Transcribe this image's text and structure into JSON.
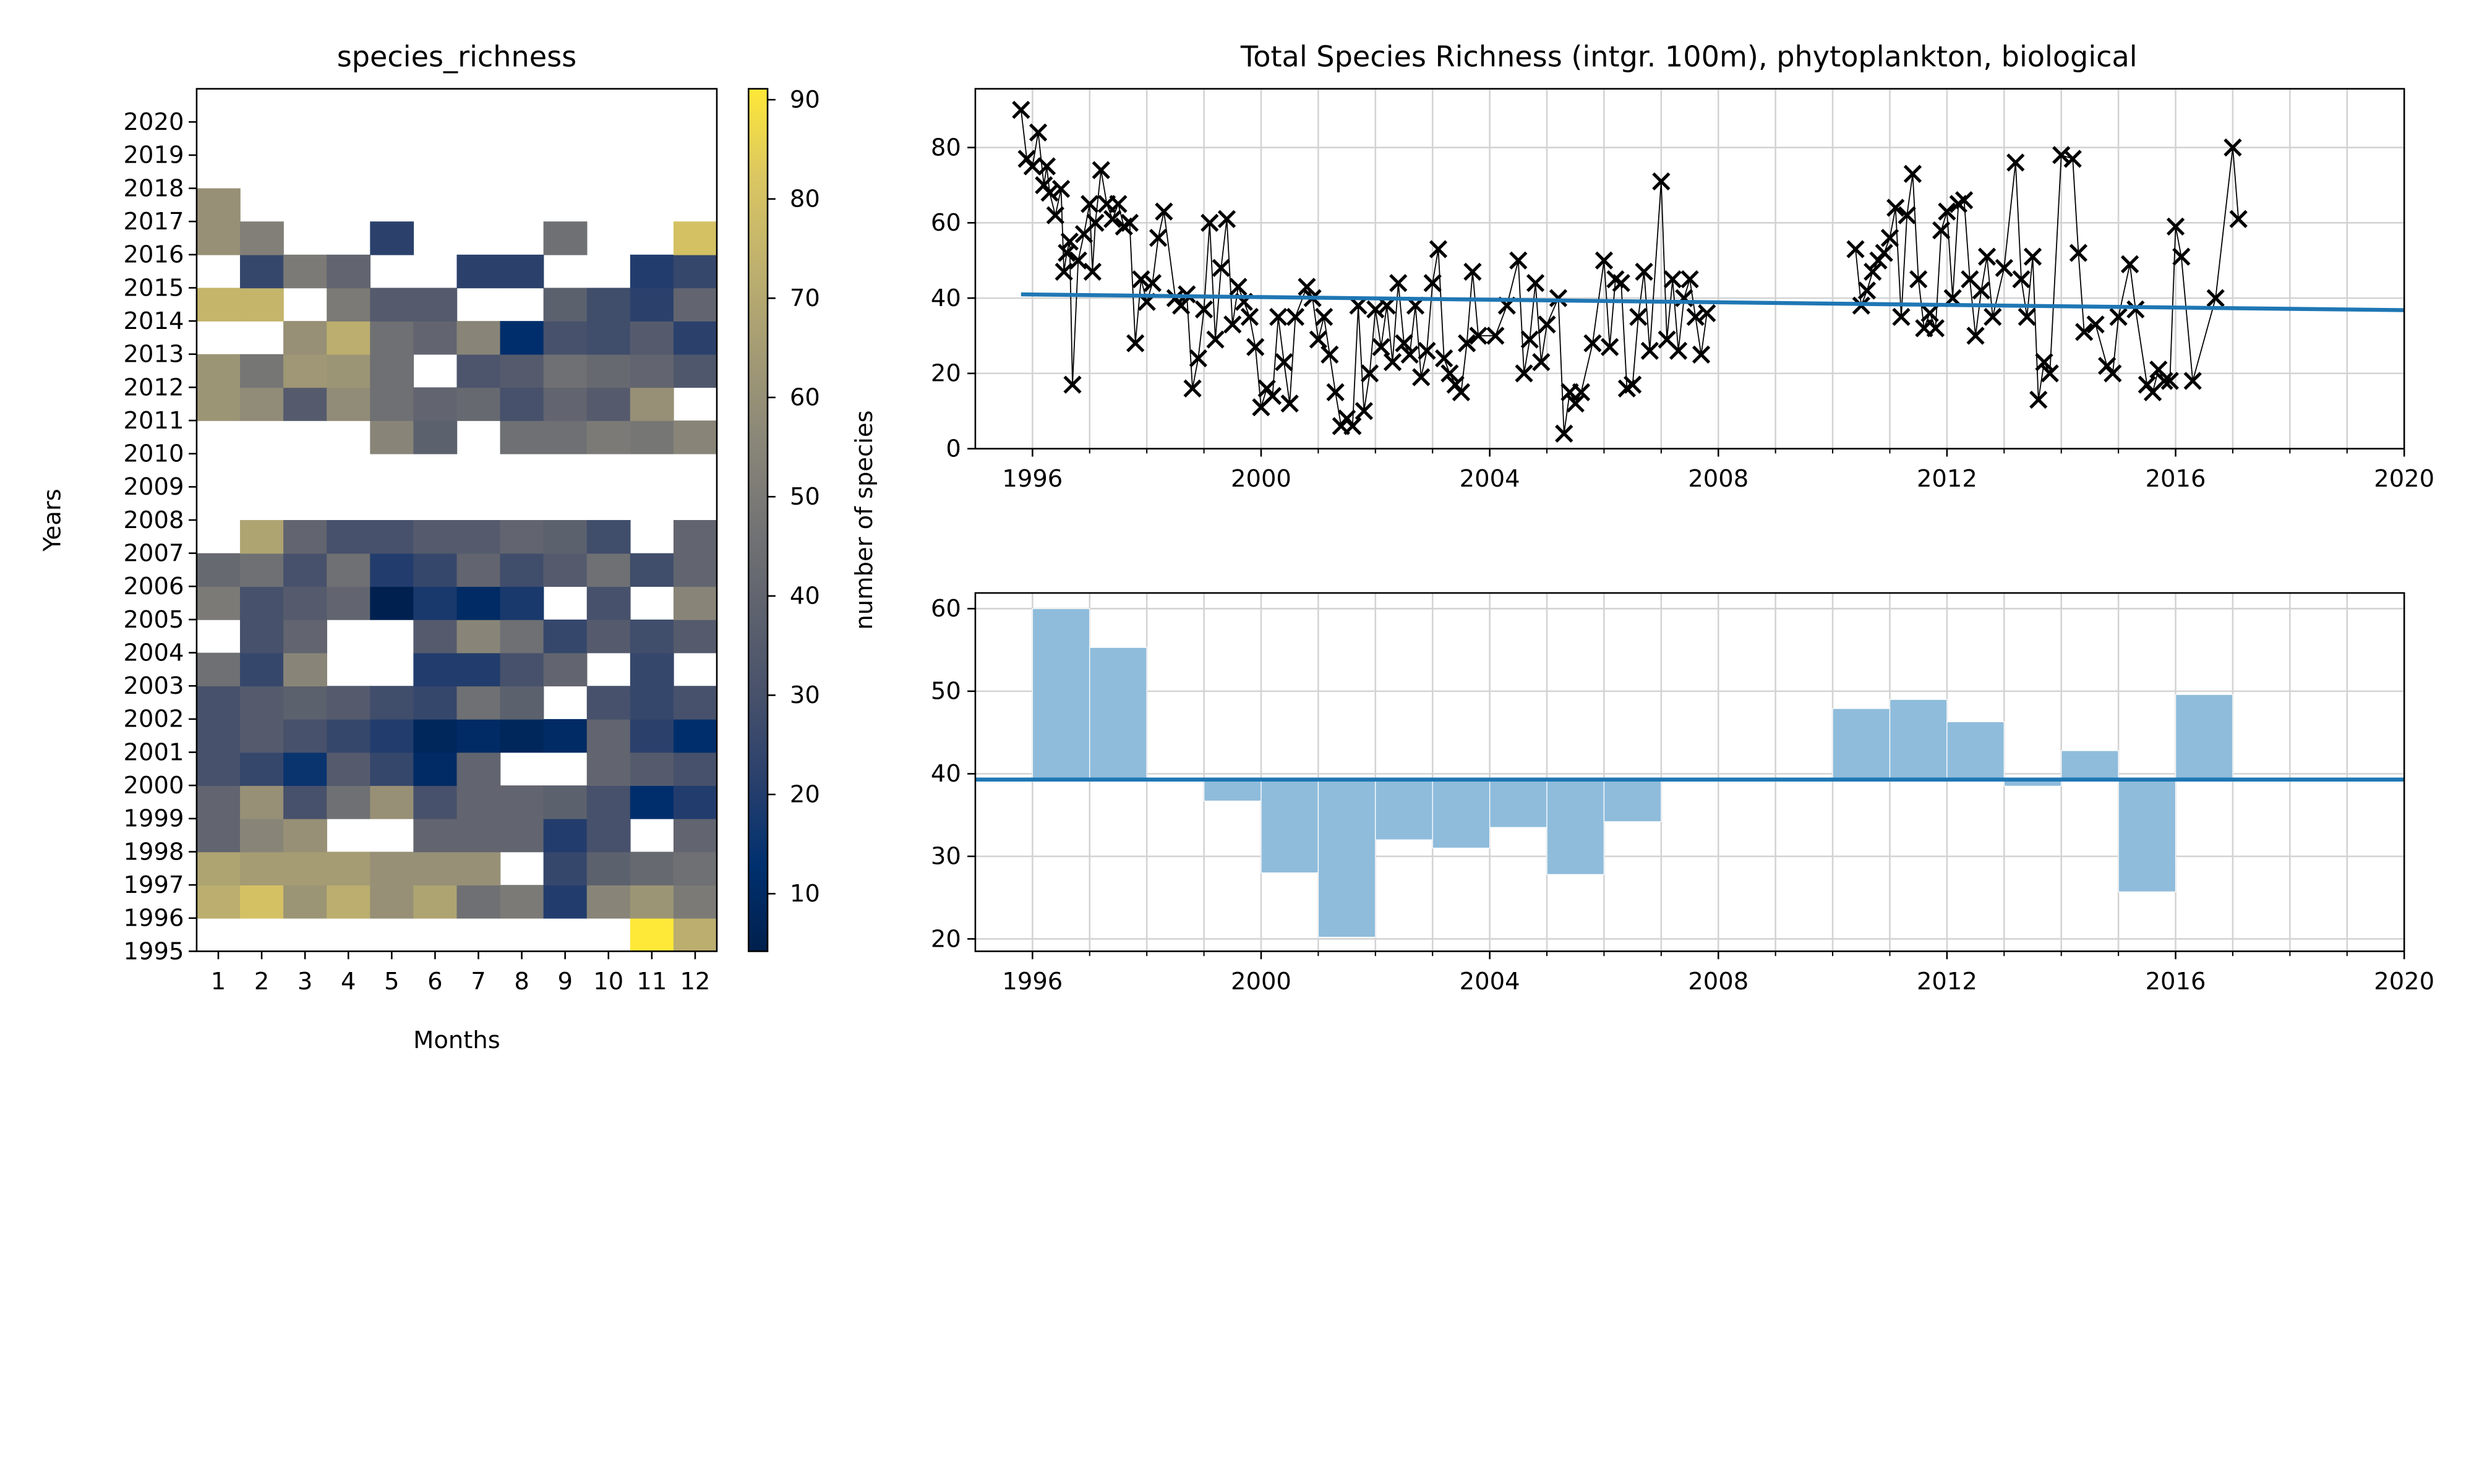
{
  "chart_data": [
    {
      "type": "heatmap",
      "title": "species_richness",
      "x_label": "Months",
      "y_label": "Years",
      "x": [
        1,
        2,
        3,
        4,
        5,
        6,
        7,
        8,
        9,
        10,
        11,
        12
      ],
      "y": [
        1995,
        1996,
        1997,
        1998,
        1999,
        2000,
        2001,
        2002,
        2003,
        2004,
        2005,
        2006,
        2007,
        2008,
        2009,
        2010,
        2011,
        2012,
        2013,
        2014,
        2015,
        2016,
        2017,
        2018,
        2019,
        2020
      ],
      "xlim": [
        0.5,
        12.5
      ],
      "ylim": [
        1995,
        2021
      ],
      "values": [
        [
          null,
          null,
          null,
          null,
          null,
          null,
          null,
          null,
          null,
          null,
          91,
          72
        ],
        [
          72,
          80,
          62,
          72,
          60,
          68,
          45,
          50,
          20,
          55,
          62,
          50
        ],
        [
          68,
          65,
          65,
          65,
          60,
          60,
          60,
          null,
          25,
          38,
          42,
          45
        ],
        [
          40,
          55,
          60,
          null,
          null,
          40,
          40,
          40,
          20,
          30,
          null,
          40
        ],
        [
          40,
          60,
          30,
          45,
          60,
          30,
          40,
          40,
          38,
          30,
          12,
          20
        ],
        [
          30,
          25,
          15,
          35,
          25,
          10,
          40,
          null,
          null,
          40,
          35,
          30
        ],
        [
          30,
          35,
          30,
          25,
          20,
          8,
          10,
          8,
          10,
          40,
          22,
          12
        ],
        [
          30,
          35,
          38,
          35,
          28,
          25,
          45,
          38,
          null,
          30,
          25,
          30
        ],
        [
          45,
          25,
          55,
          null,
          null,
          20,
          20,
          30,
          40,
          null,
          25,
          null
        ],
        [
          null,
          30,
          40,
          null,
          null,
          35,
          55,
          45,
          25,
          35,
          28,
          35
        ],
        [
          50,
          30,
          35,
          40,
          5,
          18,
          10,
          18,
          null,
          30,
          null,
          55
        ],
        [
          42,
          45,
          30,
          45,
          20,
          25,
          40,
          28,
          35,
          45,
          28,
          40
        ],
        [
          null,
          68,
          40,
          30,
          30,
          35,
          35,
          40,
          38,
          28,
          null,
          40
        ],
        [
          null,
          null,
          null,
          null,
          null,
          null,
          null,
          null,
          null,
          null,
          null,
          null
        ],
        [
          null,
          null,
          null,
          null,
          null,
          null,
          null,
          null,
          null,
          null,
          null,
          null
        ],
        [
          null,
          null,
          null,
          null,
          55,
          38,
          null,
          45,
          45,
          50,
          48,
          55
        ],
        [
          62,
          58,
          35,
          58,
          45,
          40,
          42,
          30,
          40,
          35,
          60,
          null
        ],
        [
          62,
          48,
          63,
          62,
          45,
          null,
          32,
          35,
          45,
          42,
          40,
          33
        ],
        [
          null,
          null,
          60,
          72,
          45,
          40,
          55,
          12,
          30,
          28,
          35,
          22
        ],
        [
          75,
          75,
          null,
          50,
          35,
          35,
          null,
          null,
          38,
          28,
          22,
          40
        ],
        [
          null,
          25,
          50,
          40,
          null,
          null,
          22,
          22,
          null,
          null,
          20,
          25
        ],
        [
          60,
          52,
          null,
          null,
          22,
          null,
          null,
          null,
          45,
          null,
          null,
          80
        ],
        [
          60,
          null,
          null,
          null,
          null,
          null,
          null,
          null,
          null,
          null,
          null,
          null
        ],
        [
          null,
          null,
          null,
          null,
          null,
          null,
          null,
          null,
          null,
          null,
          null,
          null
        ],
        [
          null,
          null,
          null,
          null,
          null,
          null,
          null,
          null,
          null,
          null,
          null,
          null
        ],
        [
          null,
          null,
          null,
          null,
          null,
          null,
          null,
          null,
          null,
          null,
          null,
          null
        ]
      ],
      "colormap": [
        "#00204d",
        "#00306f",
        "#2a406c",
        "#48526b",
        "#5f636e",
        "#757575",
        "#8c8878",
        "#a59c74",
        "#c0b26d",
        "#dbc761",
        "#fee838"
      ],
      "clim": [
        4.2,
        91.1
      ],
      "cticks": [
        10,
        20,
        30,
        40,
        50,
        60,
        70,
        80,
        90
      ],
      "colorbar_label": "number of species"
    },
    {
      "type": "line",
      "title": "Total Species Richness (intgr. 100m), phytoplankton, biological",
      "xlim": [
        1995,
        2020
      ],
      "ylim": [
        0,
        95.6
      ],
      "xticks": [
        1996,
        2000,
        2004,
        2008,
        2012,
        2016,
        2020
      ],
      "xminorticks": [
        1997,
        1998,
        1999,
        2001,
        2002,
        2003,
        2005,
        2006,
        2007,
        2009,
        2010,
        2011,
        2013,
        2014,
        2015,
        2017,
        2018,
        2019
      ],
      "yticks": [
        0,
        20,
        40,
        60,
        80
      ],
      "grid": true,
      "series": [
        {
          "color": "#000000",
          "marker": "x",
          "x": [
            1995.8,
            1995.9,
            1996.0,
            1996.1,
            1996.2,
            1996.25,
            1996.3,
            1996.4,
            1996.5,
            1996.55,
            1996.6,
            1996.65,
            1996.7,
            1996.8,
            1996.9,
            1997.0,
            1997.05,
            1997.1,
            1997.2,
            1997.3,
            1997.4,
            1997.5,
            1997.6,
            1997.7,
            1997.8,
            1997.9,
            1998.0,
            1998.1,
            1998.2,
            1998.3,
            1998.5,
            1998.6,
            1998.7,
            1998.8,
            1998.9,
            1999.0,
            1999.1,
            1999.2,
            1999.3,
            1999.4,
            1999.5,
            1999.6,
            1999.7,
            1999.8,
            1999.9,
            2000.0,
            2000.1,
            2000.2,
            2000.3,
            2000.4,
            2000.5,
            2000.6,
            2000.8,
            2000.9,
            2001.0,
            2001.1,
            2001.2,
            2001.3,
            2001.4,
            2001.5,
            2001.6,
            2001.7,
            2001.8,
            2001.9,
            2002.0,
            2002.1,
            2002.2,
            2002.3,
            2002.4,
            2002.5,
            2002.6,
            2002.7,
            2002.8,
            2002.9,
            2003.0,
            2003.1,
            2003.2,
            2003.3,
            2003.4,
            2003.5,
            2003.6,
            2003.7,
            2003.8,
            2004.1,
            2004.3,
            2004.5,
            2004.6,
            2004.7,
            2004.8,
            2004.9,
            2005.0,
            2005.2,
            2005.3,
            2005.4,
            2005.5,
            2005.6,
            2005.8,
            2006.0,
            2006.1,
            2006.2,
            2006.3,
            2006.4,
            2006.5,
            2006.6,
            2006.7,
            2006.8,
            2007.0,
            2007.1,
            2007.2,
            2007.3,
            2007.4,
            2007.5,
            2007.6,
            2007.7,
            2007.8,
            null,
            2010.4,
            2010.5,
            2010.6,
            2010.7,
            2010.8,
            2010.9,
            2011.0,
            2011.1,
            2011.2,
            2011.3,
            2011.4,
            2011.5,
            2011.6,
            2011.7,
            2011.8,
            2011.9,
            2012.0,
            2012.1,
            2012.2,
            2012.3,
            2012.4,
            2012.5,
            2012.6,
            2012.7,
            2012.8,
            2013.0,
            2013.2,
            2013.3,
            2013.4,
            2013.5,
            2013.6,
            2013.7,
            2013.8,
            2014.0,
            2014.2,
            2014.3,
            2014.4,
            2014.6,
            2014.8,
            2014.9,
            2015.0,
            2015.2,
            2015.3,
            2015.5,
            2015.6,
            2015.7,
            2015.8,
            2015.9,
            2016.0,
            2016.1,
            2016.3,
            2016.7,
            2017.0,
            2017.1
          ],
          "values": [
            90,
            77,
            75,
            84,
            70,
            75,
            68,
            62,
            69,
            47,
            52,
            55,
            17,
            50,
            57,
            65,
            47,
            60,
            74,
            65,
            61,
            65,
            59,
            60,
            28,
            45,
            39,
            44,
            56,
            63,
            40,
            38,
            41,
            16,
            24,
            37,
            60,
            29,
            48,
            61,
            33,
            43,
            39,
            35,
            27,
            11,
            16,
            14,
            35,
            23,
            12,
            35,
            43,
            40,
            29,
            35,
            25,
            15,
            6,
            8,
            6,
            38,
            10,
            20,
            37,
            27,
            38,
            23,
            44,
            28,
            25,
            38,
            19,
            26,
            44,
            53,
            24,
            20,
            17,
            15,
            28,
            47,
            30,
            30,
            38,
            50,
            20,
            29,
            44,
            23,
            33,
            40,
            4,
            15,
            12,
            15,
            28,
            50,
            27,
            45,
            44,
            16,
            17,
            35,
            47,
            26,
            71,
            29,
            45,
            26,
            40,
            45,
            35,
            25,
            36,
            null,
            53,
            38,
            42,
            47,
            50,
            52,
            56,
            64,
            35,
            62,
            73,
            45,
            32,
            36,
            32,
            58,
            63,
            40,
            65,
            66,
            45,
            30,
            42,
            51,
            35,
            48,
            76,
            45,
            35,
            51,
            13,
            23,
            20,
            78,
            77,
            52,
            31,
            33,
            22,
            20,
            35,
            49,
            37,
            17,
            15,
            21,
            18,
            18,
            59,
            51,
            18,
            40,
            80,
            61
          ]
        },
        {
          "color": "#1f77b4",
          "x": [
            1995.8,
            2020
          ],
          "values": [
            41,
            36.8
          ]
        }
      ]
    },
    {
      "type": "bar",
      "xlim": [
        1995,
        2020
      ],
      "ylim": [
        18.5,
        61.9
      ],
      "xticks": [
        1996,
        2000,
        2004,
        2008,
        2012,
        2016,
        2020
      ],
      "xminorticks": [
        1997,
        1998,
        1999,
        2001,
        2002,
        2003,
        2005,
        2006,
        2007,
        2009,
        2010,
        2011,
        2013,
        2014,
        2015,
        2017,
        2018,
        2019
      ],
      "yticks": [
        20,
        30,
        40,
        50,
        60
      ],
      "grid": true,
      "baseline": 39.3,
      "baseline_color": "#1f77b4",
      "color": "#8fbcdb",
      "x": [
        1996,
        1997,
        1998,
        1999,
        2000,
        2001,
        2002,
        2003,
        2004,
        2005,
        2006,
        2007,
        2008,
        2009,
        2010,
        2011,
        2012,
        2013,
        2014,
        2015,
        2016,
        2017,
        2018,
        2019
      ],
      "values": [
        60,
        55.3,
        null,
        36.7,
        28,
        20.2,
        32,
        31,
        33.5,
        27.8,
        34.2,
        39.1,
        null,
        null,
        47.9,
        49,
        46.3,
        38.5,
        42.8,
        25.7,
        49.6,
        null,
        null,
        null
      ]
    }
  ]
}
